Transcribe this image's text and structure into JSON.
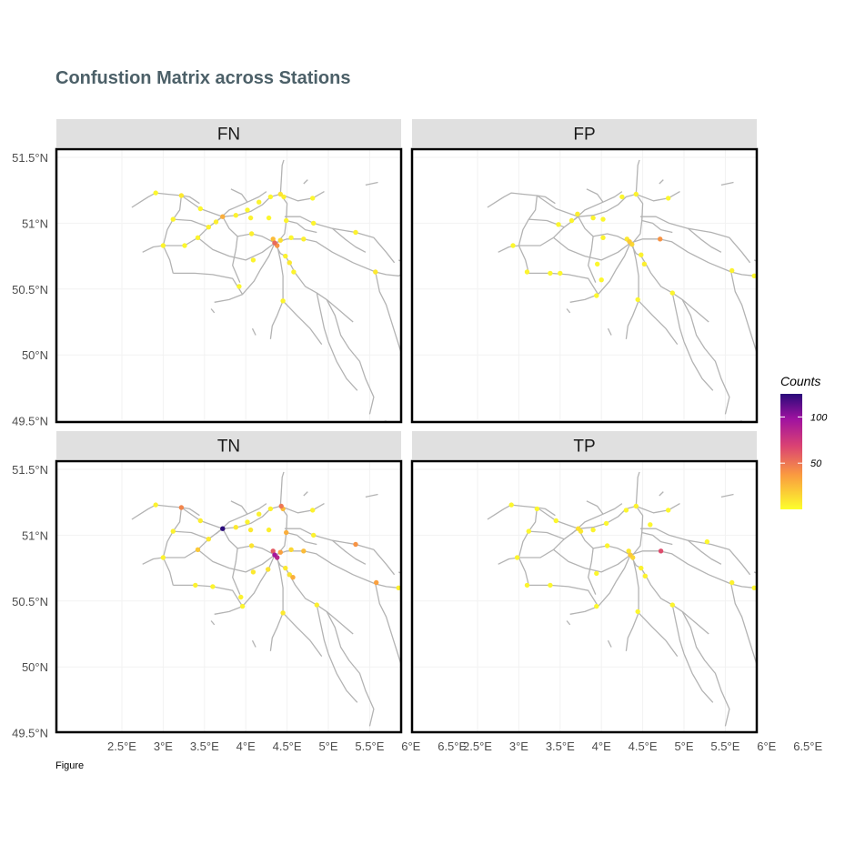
{
  "title": "Confustion Matrix across Stations",
  "caption": "Figure",
  "colors": {
    "network": "#b3b3b3",
    "strip_bg": "#e0e0e0",
    "grid": "#f2f2f2",
    "title": "#4c6068"
  },
  "chart_data": {
    "type": "scatter",
    "title": "Confustion Matrix across Stations",
    "facets": [
      "FN",
      "FP",
      "TN",
      "TP"
    ],
    "xlim": [
      2.45,
      6.6
    ],
    "ylim": [
      49.45,
      51.55
    ],
    "x_ticks": [
      2.5,
      3,
      3.5,
      4,
      4.5,
      5,
      5.5,
      6,
      6.5
    ],
    "x_tick_labels": [
      "2.5°E",
      "3°E",
      "3.5°E",
      "4°E",
      "4.5°E",
      "5°E",
      "5.5°E",
      "6°E",
      "6.5°E"
    ],
    "y_ticks": [
      49.5,
      50,
      50.5,
      51,
      51.5
    ],
    "y_tick_labels": [
      "49.5°N",
      "50°N",
      "50.5°N",
      "51°N",
      "51.5°N"
    ],
    "legend": {
      "title": "Counts",
      "breaks": [
        50,
        100
      ],
      "labels": [
        "50",
        "100"
      ],
      "range": [
        0,
        125
      ],
      "position": "right"
    },
    "points": {
      "FN": [
        {
          "lon": 2.91,
          "lat": 51.23,
          "count": 3
        },
        {
          "lon": 3.22,
          "lat": 51.21,
          "count": 8
        },
        {
          "lon": 3.12,
          "lat": 51.03,
          "count": 4
        },
        {
          "lon": 3.45,
          "lat": 51.11,
          "count": 3
        },
        {
          "lon": 3.72,
          "lat": 51.05,
          "count": 30
        },
        {
          "lon": 3.64,
          "lat": 51.01,
          "count": 6
        },
        {
          "lon": 3.88,
          "lat": 51.06,
          "count": 5
        },
        {
          "lon": 4.02,
          "lat": 51.1,
          "count": 3
        },
        {
          "lon": 4.16,
          "lat": 51.16,
          "count": 4
        },
        {
          "lon": 4.3,
          "lat": 51.2,
          "count": 3
        },
        {
          "lon": 4.42,
          "lat": 51.22,
          "count": 10
        },
        {
          "lon": 4.46,
          "lat": 51.2,
          "count": 6
        },
        {
          "lon": 4.81,
          "lat": 51.19,
          "count": 3
        },
        {
          "lon": 4.06,
          "lat": 51.04,
          "count": 5
        },
        {
          "lon": 4.28,
          "lat": 51.04,
          "count": 3
        },
        {
          "lon": 4.49,
          "lat": 51.02,
          "count": 4
        },
        {
          "lon": 4.82,
          "lat": 51.0,
          "count": 4
        },
        {
          "lon": 3.0,
          "lat": 50.83,
          "count": 4
        },
        {
          "lon": 3.26,
          "lat": 50.83,
          "count": 3
        },
        {
          "lon": 3.42,
          "lat": 50.89,
          "count": 4
        },
        {
          "lon": 3.55,
          "lat": 50.97,
          "count": 5
        },
        {
          "lon": 4.07,
          "lat": 50.92,
          "count": 6
        },
        {
          "lon": 4.35,
          "lat": 50.85,
          "count": 55
        },
        {
          "lon": 4.38,
          "lat": 50.83,
          "count": 40
        },
        {
          "lon": 4.33,
          "lat": 50.88,
          "count": 25
        },
        {
          "lon": 4.42,
          "lat": 50.87,
          "count": 12
        },
        {
          "lon": 4.55,
          "lat": 50.89,
          "count": 3
        },
        {
          "lon": 4.7,
          "lat": 50.88,
          "count": 6
        },
        {
          "lon": 4.09,
          "lat": 50.72,
          "count": 4
        },
        {
          "lon": 4.48,
          "lat": 50.75,
          "count": 5
        },
        {
          "lon": 4.53,
          "lat": 50.7,
          "count": 8
        },
        {
          "lon": 4.58,
          "lat": 50.63,
          "count": 4
        },
        {
          "lon": 3.92,
          "lat": 50.52,
          "count": 3
        },
        {
          "lon": 4.45,
          "lat": 50.41,
          "count": 4
        },
        {
          "lon": 5.33,
          "lat": 50.93,
          "count": 5
        },
        {
          "lon": 5.57,
          "lat": 50.63,
          "count": 8
        }
      ],
      "FP": [
        {
          "lon": 3.48,
          "lat": 50.99,
          "count": 3
        },
        {
          "lon": 3.64,
          "lat": 51.02,
          "count": 4
        },
        {
          "lon": 3.71,
          "lat": 51.07,
          "count": 6
        },
        {
          "lon": 3.9,
          "lat": 51.04,
          "count": 4
        },
        {
          "lon": 4.02,
          "lat": 51.03,
          "count": 3
        },
        {
          "lon": 4.25,
          "lat": 51.2,
          "count": 3
        },
        {
          "lon": 4.42,
          "lat": 51.22,
          "count": 5
        },
        {
          "lon": 4.81,
          "lat": 51.19,
          "count": 3
        },
        {
          "lon": 2.93,
          "lat": 50.83,
          "count": 3
        },
        {
          "lon": 4.02,
          "lat": 50.89,
          "count": 4
        },
        {
          "lon": 4.34,
          "lat": 50.86,
          "count": 20
        },
        {
          "lon": 4.37,
          "lat": 50.84,
          "count": 15
        },
        {
          "lon": 4.31,
          "lat": 50.88,
          "count": 8
        },
        {
          "lon": 4.71,
          "lat": 50.88,
          "count": 40
        },
        {
          "lon": 3.1,
          "lat": 50.63,
          "count": 4
        },
        {
          "lon": 3.38,
          "lat": 50.62,
          "count": 3
        },
        {
          "lon": 3.5,
          "lat": 50.62,
          "count": 3
        },
        {
          "lon": 3.95,
          "lat": 50.69,
          "count": 3
        },
        {
          "lon": 4.0,
          "lat": 50.57,
          "count": 3
        },
        {
          "lon": 3.94,
          "lat": 50.45,
          "count": 3
        },
        {
          "lon": 4.48,
          "lat": 50.76,
          "count": 5
        },
        {
          "lon": 4.52,
          "lat": 50.69,
          "count": 6
        },
        {
          "lon": 4.44,
          "lat": 50.42,
          "count": 3
        },
        {
          "lon": 4.86,
          "lat": 50.47,
          "count": 4
        },
        {
          "lon": 5.58,
          "lat": 50.64,
          "count": 5
        },
        {
          "lon": 5.85,
          "lat": 50.6,
          "count": 3
        }
      ],
      "TN": [
        {
          "lon": 2.91,
          "lat": 51.23,
          "count": 5
        },
        {
          "lon": 3.22,
          "lat": 51.21,
          "count": 45
        },
        {
          "lon": 3.12,
          "lat": 51.03,
          "count": 5
        },
        {
          "lon": 3.45,
          "lat": 51.11,
          "count": 6
        },
        {
          "lon": 3.72,
          "lat": 51.05,
          "count": 125
        },
        {
          "lon": 3.88,
          "lat": 51.06,
          "count": 8
        },
        {
          "lon": 4.02,
          "lat": 51.1,
          "count": 4
        },
        {
          "lon": 4.16,
          "lat": 51.16,
          "count": 5
        },
        {
          "lon": 4.3,
          "lat": 51.2,
          "count": 5
        },
        {
          "lon": 4.43,
          "lat": 51.22,
          "count": 50
        },
        {
          "lon": 4.45,
          "lat": 51.2,
          "count": 25
        },
        {
          "lon": 4.81,
          "lat": 51.19,
          "count": 5
        },
        {
          "lon": 4.06,
          "lat": 51.04,
          "count": 8
        },
        {
          "lon": 4.28,
          "lat": 51.04,
          "count": 6
        },
        {
          "lon": 4.49,
          "lat": 51.02,
          "count": 30
        },
        {
          "lon": 4.82,
          "lat": 51.0,
          "count": 5
        },
        {
          "lon": 3.0,
          "lat": 50.83,
          "count": 5
        },
        {
          "lon": 3.42,
          "lat": 50.89,
          "count": 20
        },
        {
          "lon": 3.55,
          "lat": 50.97,
          "count": 8
        },
        {
          "lon": 4.07,
          "lat": 50.92,
          "count": 10
        },
        {
          "lon": 4.35,
          "lat": 50.85,
          "count": 95
        },
        {
          "lon": 4.38,
          "lat": 50.83,
          "count": 85
        },
        {
          "lon": 4.33,
          "lat": 50.88,
          "count": 60
        },
        {
          "lon": 4.42,
          "lat": 50.87,
          "count": 35
        },
        {
          "lon": 4.55,
          "lat": 50.89,
          "count": 15
        },
        {
          "lon": 4.7,
          "lat": 50.88,
          "count": 25
        },
        {
          "lon": 4.09,
          "lat": 50.72,
          "count": 8
        },
        {
          "lon": 4.27,
          "lat": 50.74,
          "count": 10
        },
        {
          "lon": 4.48,
          "lat": 50.75,
          "count": 8
        },
        {
          "lon": 4.53,
          "lat": 50.7,
          "count": 10
        },
        {
          "lon": 4.57,
          "lat": 50.68,
          "count": 30
        },
        {
          "lon": 3.39,
          "lat": 50.62,
          "count": 5
        },
        {
          "lon": 3.6,
          "lat": 50.61,
          "count": 4
        },
        {
          "lon": 3.94,
          "lat": 50.53,
          "count": 5
        },
        {
          "lon": 3.96,
          "lat": 50.46,
          "count": 4
        },
        {
          "lon": 4.45,
          "lat": 50.41,
          "count": 8
        },
        {
          "lon": 4.86,
          "lat": 50.47,
          "count": 6
        },
        {
          "lon": 5.33,
          "lat": 50.93,
          "count": 40
        },
        {
          "lon": 5.58,
          "lat": 50.64,
          "count": 35
        },
        {
          "lon": 5.85,
          "lat": 50.6,
          "count": 6
        }
      ],
      "TP": [
        {
          "lon": 2.91,
          "lat": 51.23,
          "count": 3
        },
        {
          "lon": 3.22,
          "lat": 51.2,
          "count": 3
        },
        {
          "lon": 3.12,
          "lat": 51.03,
          "count": 3
        },
        {
          "lon": 3.45,
          "lat": 51.11,
          "count": 3
        },
        {
          "lon": 3.72,
          "lat": 51.05,
          "count": 12
        },
        {
          "lon": 3.75,
          "lat": 51.03,
          "count": 8
        },
        {
          "lon": 3.9,
          "lat": 51.04,
          "count": 4
        },
        {
          "lon": 4.06,
          "lat": 51.09,
          "count": 3
        },
        {
          "lon": 4.3,
          "lat": 51.19,
          "count": 3
        },
        {
          "lon": 4.42,
          "lat": 51.22,
          "count": 5
        },
        {
          "lon": 4.81,
          "lat": 51.19,
          "count": 3
        },
        {
          "lon": 4.59,
          "lat": 51.08,
          "count": 3
        },
        {
          "lon": 5.28,
          "lat": 50.95,
          "count": 3
        },
        {
          "lon": 2.98,
          "lat": 50.83,
          "count": 4
        },
        {
          "lon": 4.07,
          "lat": 50.92,
          "count": 4
        },
        {
          "lon": 4.35,
          "lat": 50.85,
          "count": 20
        },
        {
          "lon": 4.38,
          "lat": 50.83,
          "count": 15
        },
        {
          "lon": 4.33,
          "lat": 50.88,
          "count": 8
        },
        {
          "lon": 4.72,
          "lat": 50.88,
          "count": 65
        },
        {
          "lon": 3.1,
          "lat": 50.62,
          "count": 4
        },
        {
          "lon": 3.38,
          "lat": 50.62,
          "count": 3
        },
        {
          "lon": 3.94,
          "lat": 50.71,
          "count": 3
        },
        {
          "lon": 4.48,
          "lat": 50.75,
          "count": 5
        },
        {
          "lon": 4.53,
          "lat": 50.69,
          "count": 5
        },
        {
          "lon": 3.94,
          "lat": 50.46,
          "count": 3
        },
        {
          "lon": 4.44,
          "lat": 50.42,
          "count": 3
        },
        {
          "lon": 4.86,
          "lat": 50.47,
          "count": 4
        },
        {
          "lon": 5.58,
          "lat": 50.64,
          "count": 5
        },
        {
          "lon": 5.85,
          "lat": 50.6,
          "count": 3
        }
      ]
    }
  }
}
